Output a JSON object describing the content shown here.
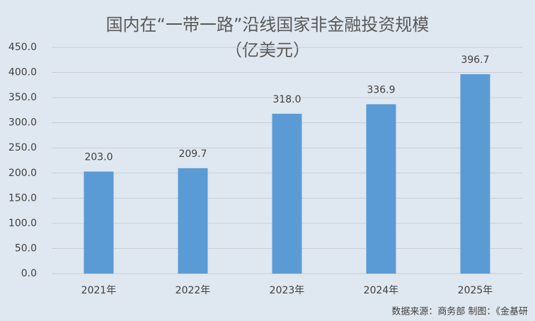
{
  "chart_data": {
    "type": "bar",
    "title": "国内在“一带一路”沿线国家非金融投资规模",
    "subtitle": "（亿美元）",
    "categories": [
      "2021年",
      "2022年",
      "2023年",
      "2024年",
      "2025年"
    ],
    "values": [
      203.0,
      209.7,
      318.0,
      336.9,
      396.7
    ],
    "value_labels": [
      "203.0",
      "209.7",
      "318.0",
      "336.9",
      "396.7"
    ],
    "color": "#5b9bd5",
    "ylim": [
      0,
      450
    ],
    "yticks": [
      {
        "value": 0,
        "label": "0.0"
      },
      {
        "value": 50,
        "label": "50.0"
      },
      {
        "value": 100,
        "label": "100.0"
      },
      {
        "value": 150,
        "label": "150.0"
      },
      {
        "value": 200,
        "label": "200.0"
      },
      {
        "value": 250,
        "label": "250.0"
      },
      {
        "value": 300,
        "label": "300.0"
      },
      {
        "value": 350,
        "label": "350.0"
      },
      {
        "value": 400,
        "label": "400.0"
      },
      {
        "value": 450,
        "label": "450.0"
      }
    ],
    "grid": true,
    "source": "数据来源：商务部  制图：《金基研"
  }
}
